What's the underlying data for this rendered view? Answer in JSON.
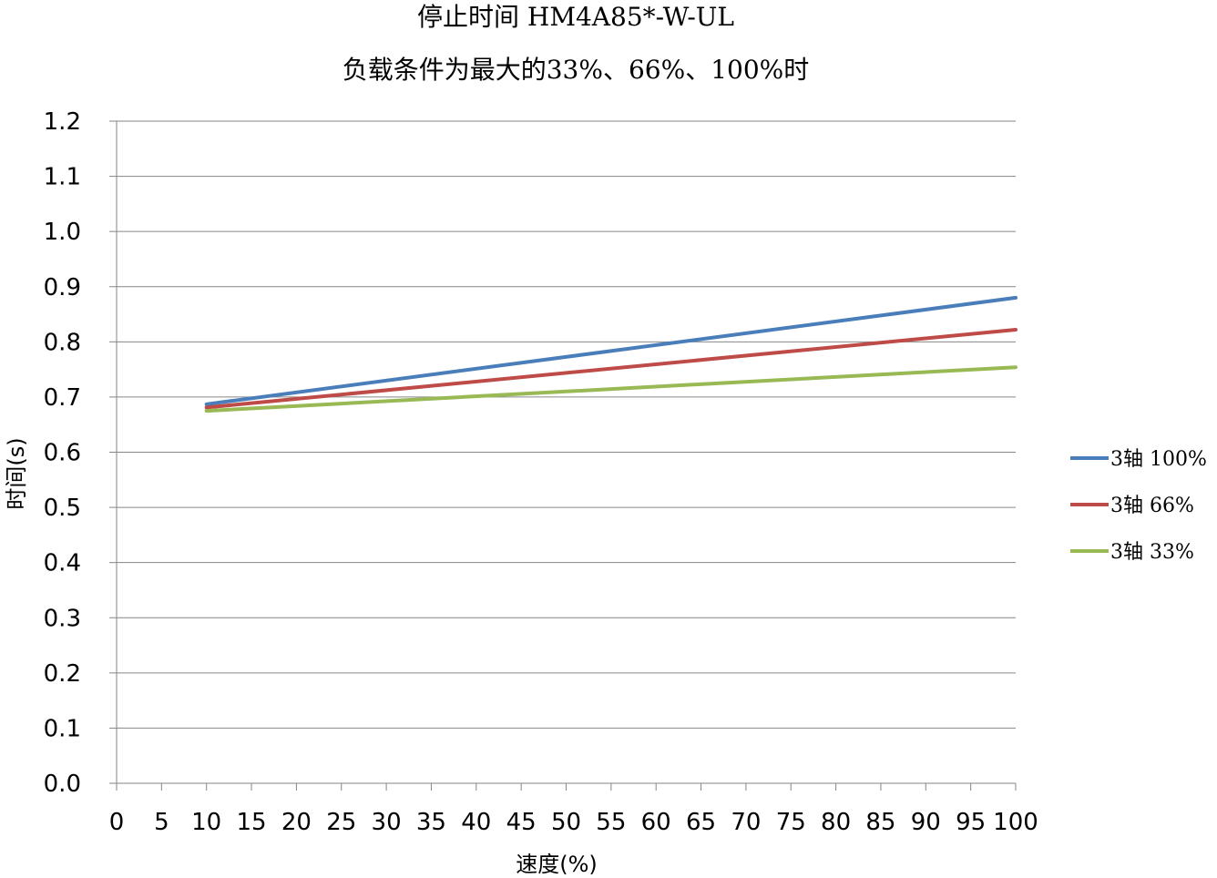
{
  "chart_data": {
    "type": "line",
    "title": "停止时间 HM4A85*-W-UL",
    "subtitle": "负载条件为最大的33%、66%、100%时",
    "xlabel": "速度(%)",
    "ylabel": "时间(s)",
    "xlim": [
      0,
      100
    ],
    "ylim": [
      0.0,
      1.2
    ],
    "x_ticks": [
      "0",
      "5",
      "10",
      "15",
      "20",
      "25",
      "30",
      "35",
      "40",
      "45",
      "50",
      "55",
      "60",
      "65",
      "70",
      "75",
      "80",
      "85",
      "90",
      "95",
      "100"
    ],
    "y_ticks": [
      "0.0",
      "0.1",
      "0.2",
      "0.3",
      "0.4",
      "0.5",
      "0.6",
      "0.7",
      "0.8",
      "0.9",
      "1.0",
      "1.1",
      "1.2"
    ],
    "grid": "horizontal",
    "legend_position": "right",
    "series": [
      {
        "name": "3轴 100%",
        "color": "#4a7ebb",
        "x": [
          10,
          100
        ],
        "y": [
          0.687,
          0.88
        ]
      },
      {
        "name": "3轴 66%",
        "color": "#be4b48",
        "x": [
          10,
          100
        ],
        "y": [
          0.681,
          0.822
        ]
      },
      {
        "name": "3轴 33%",
        "color": "#98b954",
        "x": [
          10,
          100
        ],
        "y": [
          0.675,
          0.754
        ]
      }
    ]
  }
}
